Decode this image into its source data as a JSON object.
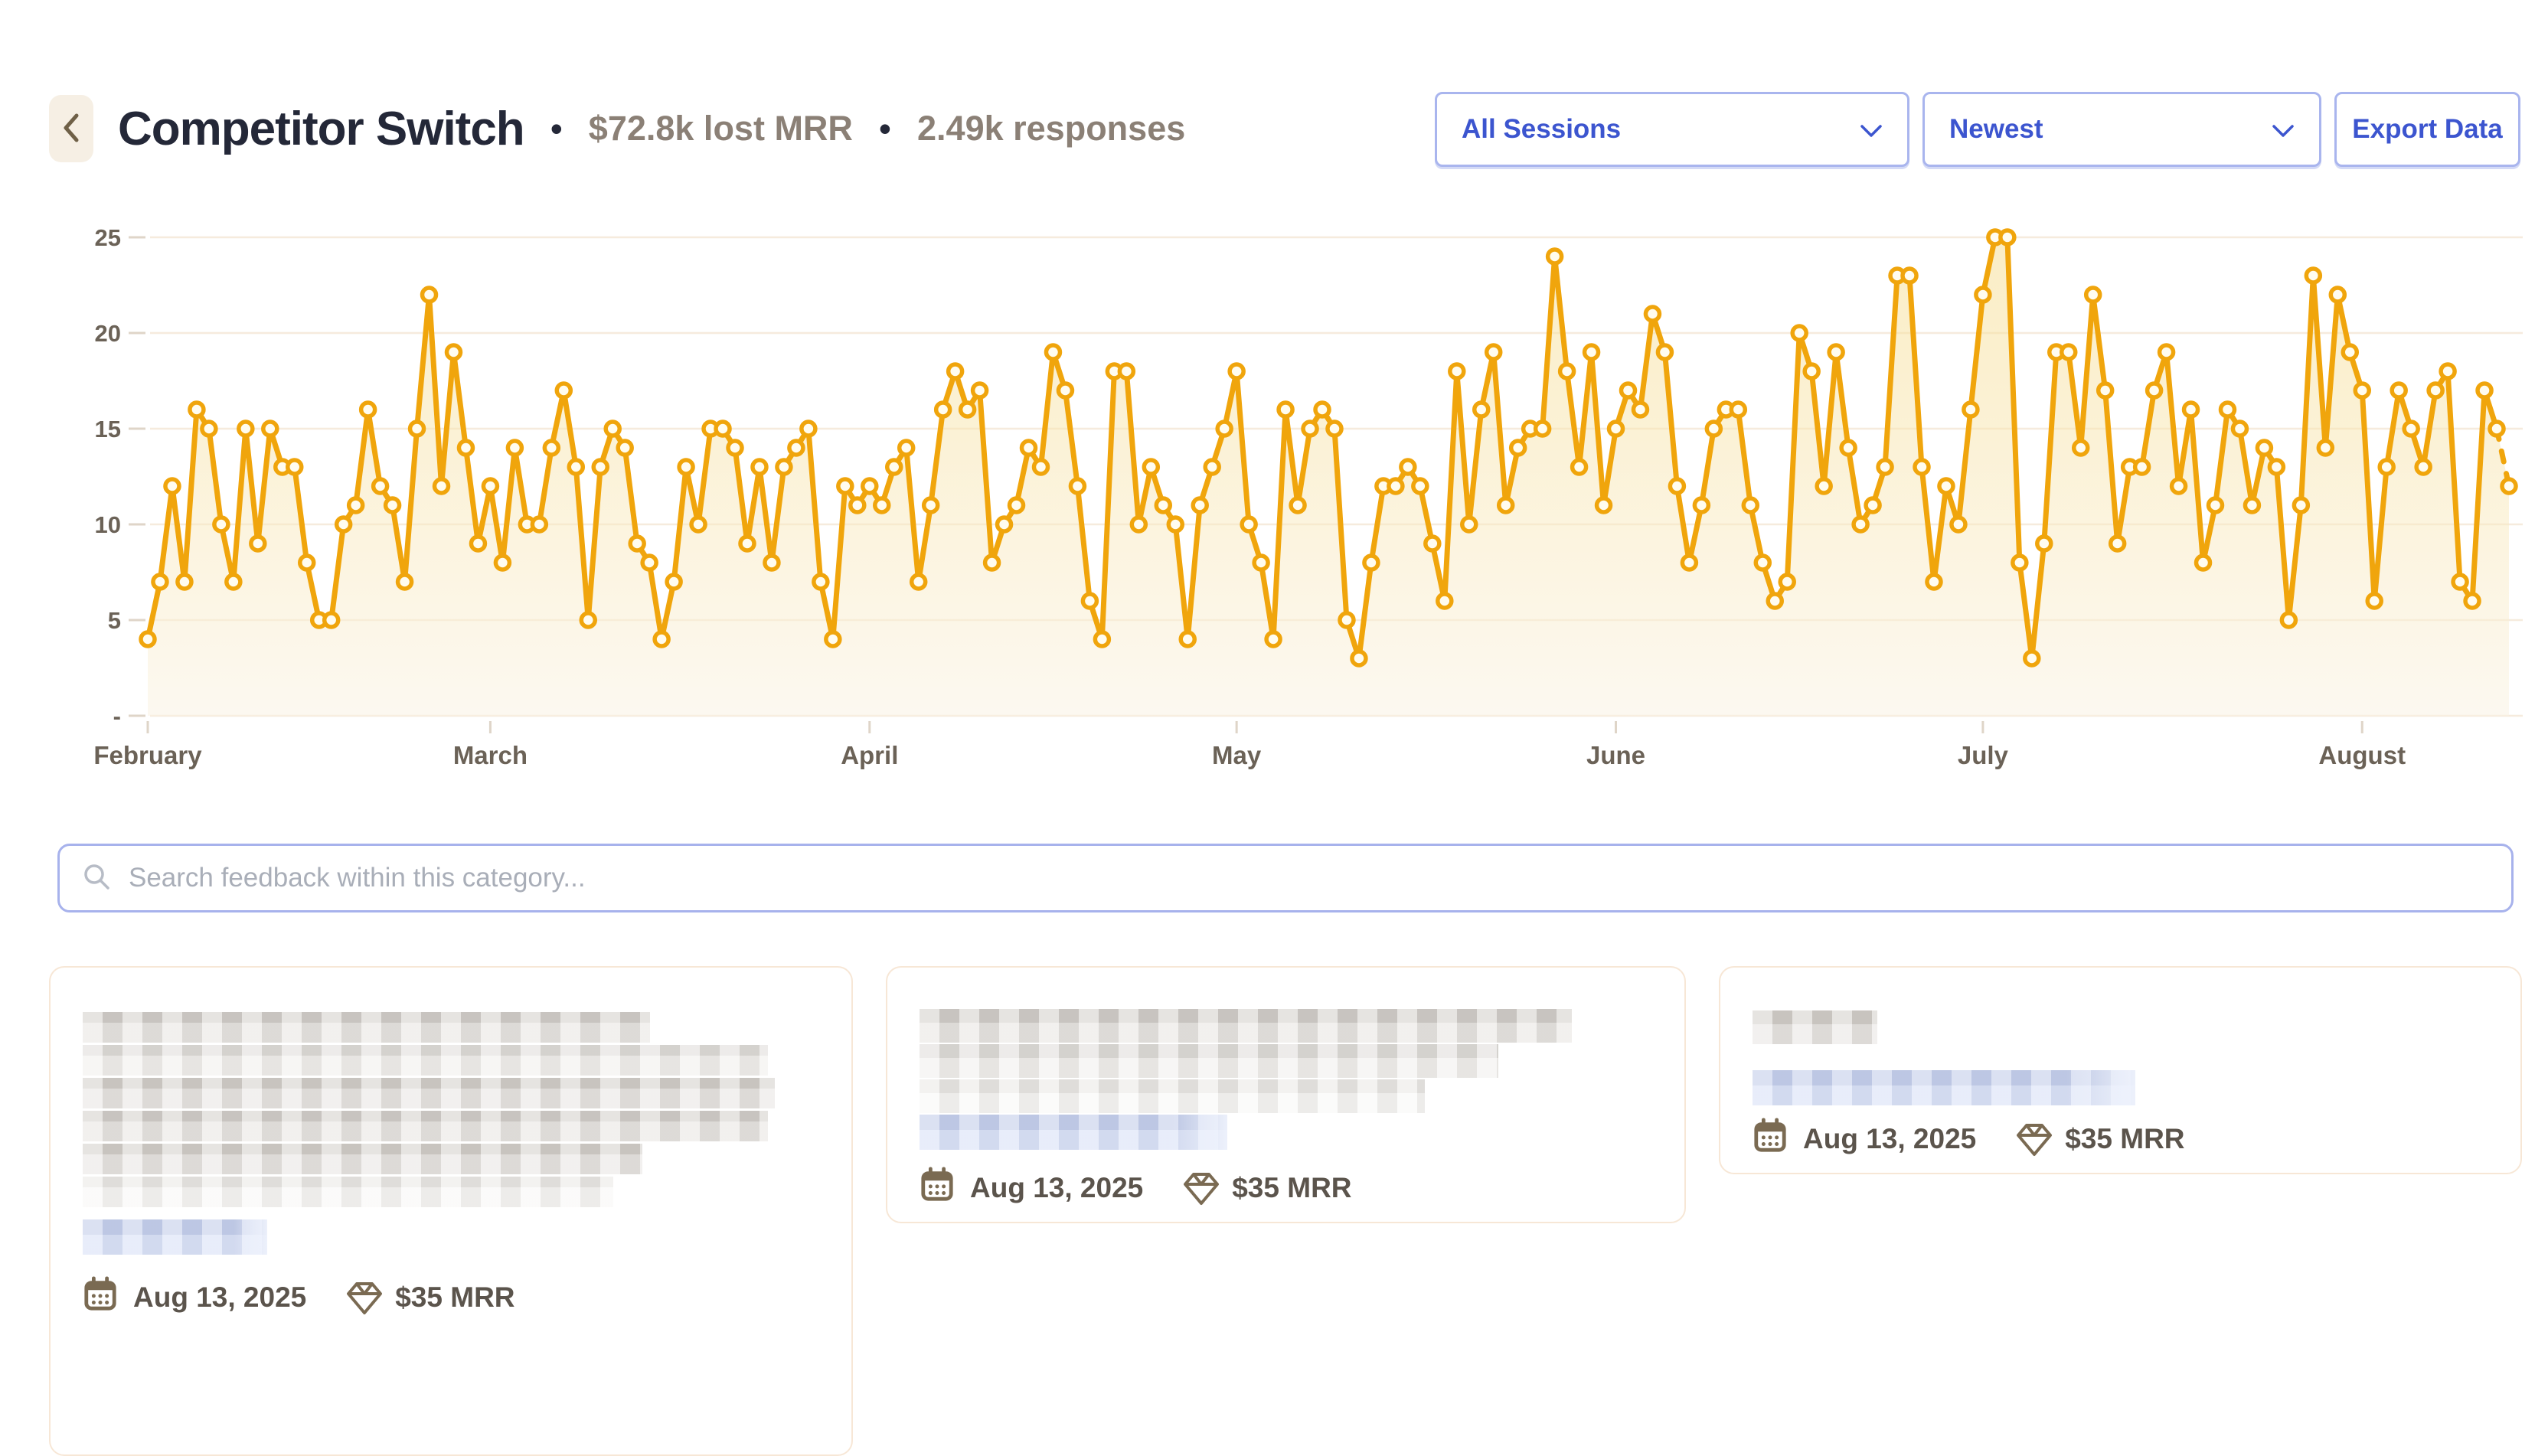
{
  "header": {
    "title": "Competitor Switch",
    "separator": "•",
    "metrics": [
      {
        "name": "lost-mrr",
        "label": "$72.8k lost MRR"
      },
      {
        "name": "responses",
        "label": "2.49k responses"
      }
    ]
  },
  "controls": {
    "session_filter": "All Sessions",
    "sort": "Newest",
    "export_label": "Export Data"
  },
  "search": {
    "placeholder": "Search feedback within this category..."
  },
  "chart_data": {
    "type": "line",
    "title": "",
    "xlabel": "",
    "ylabel": "",
    "x_axis": {
      "unit": "day",
      "start": "February 1",
      "end": "August 13",
      "tick_labels": [
        "February",
        "March",
        "April",
        "May",
        "June",
        "July",
        "August"
      ],
      "tick_day_index": [
        0,
        28,
        59,
        89,
        120,
        150,
        181
      ]
    },
    "ylim": [
      0,
      25
    ],
    "yticks": [
      0,
      5,
      10,
      15,
      20,
      25
    ],
    "ytick_labels": [
      "-",
      "5",
      "10",
      "15",
      "20",
      "25"
    ],
    "grid": "horizontal",
    "legend": "none",
    "last_segment_dashed": true,
    "values": [
      4,
      7,
      12,
      7,
      16,
      15,
      10,
      7,
      15,
      9,
      15,
      13,
      13,
      8,
      5,
      5,
      10,
      11,
      16,
      12,
      11,
      7,
      15,
      22,
      12,
      19,
      14,
      9,
      12,
      8,
      14,
      10,
      10,
      14,
      17,
      13,
      5,
      13,
      15,
      14,
      9,
      8,
      4,
      7,
      13,
      10,
      15,
      15,
      14,
      9,
      13,
      8,
      13,
      14,
      15,
      7,
      4,
      12,
      11,
      12,
      11,
      13,
      14,
      7,
      11,
      16,
      18,
      16,
      17,
      8,
      10,
      11,
      14,
      13,
      19,
      17,
      12,
      6,
      4,
      18,
      18,
      10,
      13,
      11,
      10,
      4,
      11,
      13,
      15,
      18,
      10,
      8,
      4,
      16,
      11,
      15,
      16,
      15,
      5,
      3,
      8,
      12,
      12,
      13,
      12,
      9,
      6,
      18,
      10,
      16,
      19,
      11,
      14,
      15,
      15,
      24,
      18,
      13,
      19,
      11,
      15,
      17,
      16,
      21,
      19,
      12,
      8,
      11,
      15,
      16,
      16,
      11,
      8,
      6,
      7,
      20,
      18,
      12,
      19,
      14,
      10,
      11,
      13,
      23,
      23,
      13,
      7,
      12,
      10,
      16,
      22,
      25,
      25,
      8,
      3,
      9,
      19,
      19,
      14,
      22,
      17,
      9,
      13,
      13,
      17,
      19,
      12,
      16,
      8,
      11,
      16,
      15,
      11,
      14,
      13,
      5,
      11,
      23,
      14,
      22,
      19,
      17,
      6,
      13,
      17,
      15,
      13,
      17,
      18,
      7,
      6,
      17,
      15,
      12
    ],
    "colors": {
      "line": "#F0A50C",
      "marker_fill": "#FFFCEF",
      "area_top": "rgba(246,220,140,0.5)",
      "area_bottom": "rgba(250,243,228,0.55)",
      "grid": "#F6EBDD",
      "tick": "#DFD5C8",
      "axis_text": "#6B6257"
    }
  },
  "cards": [
    {
      "date": "Aug 13, 2025",
      "mrr": "$35 MRR",
      "redacted_lines": [
        {
          "width": "77%",
          "tone": "mid"
        },
        {
          "width": "93%",
          "tone": "light"
        },
        {
          "width": "94%",
          "tone": "mid"
        },
        {
          "width": "93%",
          "tone": "mid"
        },
        {
          "width": "76%",
          "tone": "mid"
        },
        {
          "width": "72%",
          "tone": "ghost"
        }
      ],
      "highlight_width": "25%"
    },
    {
      "date": "Aug 13, 2025",
      "mrr": "$35 MRR",
      "redacted_lines": [
        {
          "width": "89%",
          "tone": "mid"
        },
        {
          "width": "79%",
          "tone": "light"
        },
        {
          "width": "69%",
          "tone": "ghost"
        }
      ],
      "highlight_width": "42%"
    },
    {
      "date": "Aug 13, 2025",
      "mrr": "$35 MRR",
      "redacted_lines": [
        {
          "width": "17%",
          "tone": "mid"
        }
      ],
      "highlight_width": "52%"
    }
  ],
  "icons": {
    "back": "chevron-left",
    "dropdown": "chevron-down",
    "search": "magnifier",
    "date": "calendar",
    "mrr": "gem"
  }
}
